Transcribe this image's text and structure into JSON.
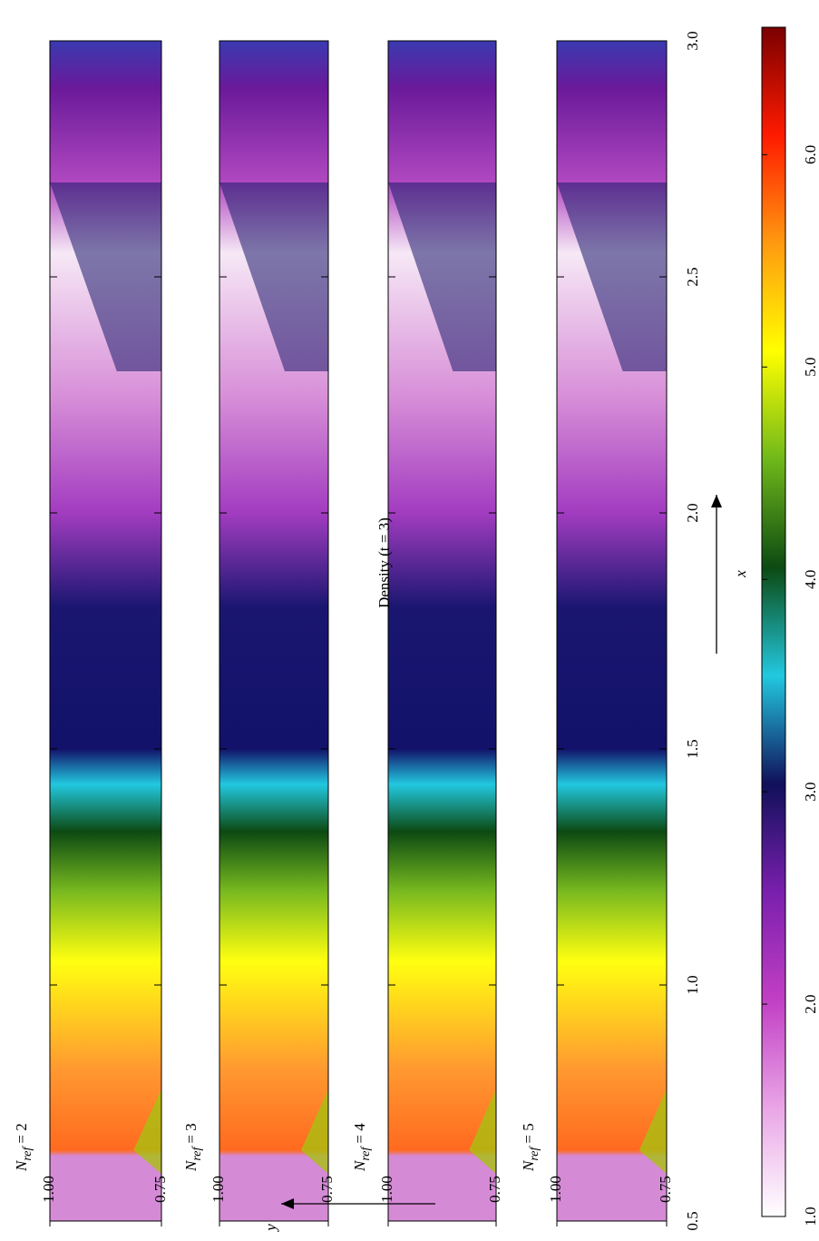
{
  "chart_data": {
    "type": "heatmap",
    "title": "Density (t = 3)",
    "xlabel": "x",
    "ylabel": "y",
    "xlim": [
      0.5,
      3.0
    ],
    "xticks": [
      0.5,
      {
        "value": 1,
        "label": "1.0"
      },
      1.5,
      {
        "value": 2,
        "label": "2.0"
      },
      2.5,
      {
        "value": 3,
        "label": "3.0"
      }
    ],
    "ylim": [
      0.75,
      1.0
    ],
    "yticks": [
      {
        "value": 1,
        "label": "1.00"
      },
      {
        "value": 0.75,
        "label": "0.75"
      }
    ],
    "panels": [
      {
        "symbol": "N",
        "subscript": "ref",
        "suffix": "= 2"
      },
      {
        "symbol": "N",
        "subscript": "ref",
        "suffix": "= 3"
      },
      {
        "symbol": "N",
        "subscript": "ref",
        "suffix": "= 4"
      },
      {
        "symbol": "N",
        "subscript": "ref",
        "suffix": "= 5"
      }
    ],
    "colorbar": {
      "clim": [
        1.0,
        6.6
      ],
      "ticks": [
        {
          "value": 1,
          "label": "1.0"
        },
        {
          "value": 2,
          "label": "2.0"
        },
        {
          "value": 3,
          "label": "3.0"
        },
        {
          "value": 4,
          "label": "4.0"
        },
        {
          "value": 5,
          "label": "5.0"
        },
        {
          "value": 6,
          "label": "6.0"
        }
      ],
      "colormap": [
        "#ffffff",
        "#e9a6e6",
        "#c23fc4",
        "#7a1fae",
        "#10105a",
        "#22c8e0",
        "#0c4a12",
        "#6fb81a",
        "#ffff00",
        "#ff9a10",
        "#ff1a00",
        "#7a0000"
      ]
    }
  }
}
